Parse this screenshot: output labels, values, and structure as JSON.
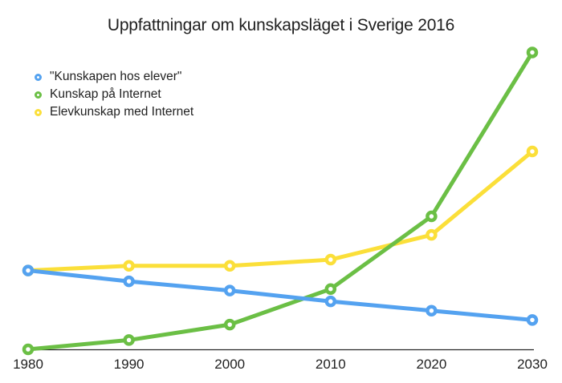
{
  "title": "Uppfattningar om kunskapsläget i Sverige 2016",
  "colors": {
    "background": "#ffffff",
    "text": "#1f1f1f",
    "axis": "#262626",
    "series_blue": "#54a2f0",
    "series_green": "#6bbf45",
    "series_yellow": "#fbdf39"
  },
  "chart_data": {
    "type": "line",
    "title": "Uppfattningar om kunskapsläget i Sverige 2016",
    "x": [
      1980,
      1990,
      2000,
      2010,
      2020,
      2030
    ],
    "xlabel": "",
    "ylabel": "",
    "ylim": [
      0,
      100
    ],
    "y_axis_visible": false,
    "grid": false,
    "legend_position": "top-left",
    "marker_style": "open-circle",
    "series": [
      {
        "name": "\"Kunskapen hos elever\"",
        "color": "#54a2f0",
        "values": [
          25.5,
          22,
          19,
          15.5,
          12.5,
          9.5
        ]
      },
      {
        "name": "Kunskap på Internet",
        "color": "#6bbf45",
        "values": [
          0,
          3,
          8,
          19.5,
          43,
          96
        ]
      },
      {
        "name": "Elevkunskap med Internet",
        "color": "#fbdf39",
        "values": [
          25.5,
          27,
          27,
          29,
          37,
          64
        ]
      }
    ]
  }
}
